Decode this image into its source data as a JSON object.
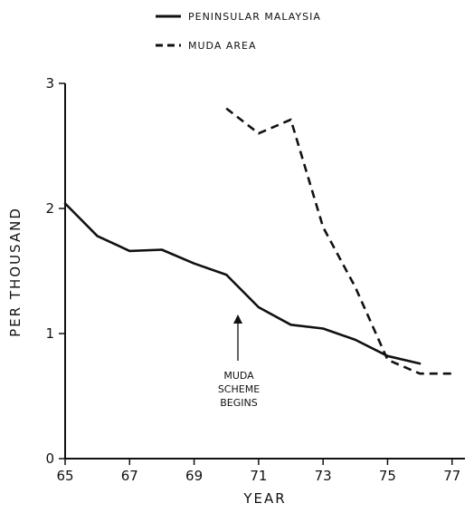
{
  "chart_data": {
    "type": "line",
    "xlabel": "YEAR",
    "ylabel": "PER THOUSAND",
    "xlim": [
      65,
      77.4
    ],
    "ylim": [
      0,
      3
    ],
    "xticks": [
      "65",
      "67",
      "69",
      "71",
      "73",
      "75",
      "77"
    ],
    "yticks": [
      "0",
      "1",
      "2",
      "3"
    ],
    "grid": false,
    "legend_position": "top-center",
    "series": [
      {
        "name": "PENINSULAR MALAYSIA",
        "style": "solid",
        "color": "#111111",
        "x": [
          65,
          66,
          67,
          68,
          69,
          70,
          71,
          72,
          73,
          74,
          75,
          76
        ],
        "y": [
          2.04,
          1.78,
          1.66,
          1.67,
          1.56,
          1.47,
          1.21,
          1.07,
          1.04,
          0.95,
          0.82,
          0.76
        ]
      },
      {
        "name": "MUDA AREA",
        "style": "dashed",
        "color": "#111111",
        "x": [
          70,
          71,
          72,
          73,
          74,
          75,
          76,
          77
        ],
        "y": [
          2.8,
          2.6,
          2.71,
          1.85,
          1.37,
          0.79,
          0.68,
          0.68
        ]
      }
    ],
    "annotations": [
      {
        "lines": [
          "MUDA",
          "SCHEME",
          "BEGINS"
        ],
        "x": 70,
        "y": 1.07
      }
    ]
  }
}
